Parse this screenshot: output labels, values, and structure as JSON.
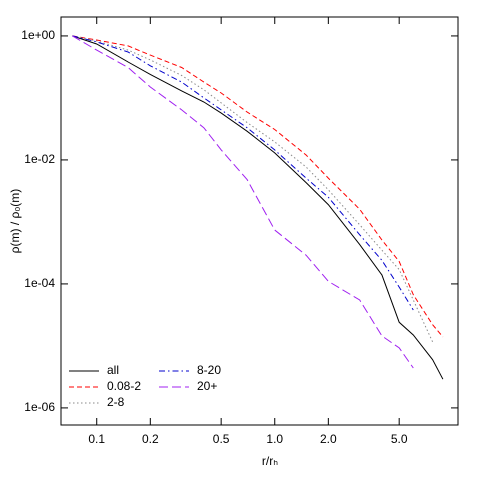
{
  "chart_data": {
    "type": "line",
    "xlabel": "r/rₕ",
    "ylabel": "ρ(m) / ρ₀(m)",
    "xlog": true,
    "ylog": true,
    "x": [
      0.073,
      0.1,
      0.15,
      0.2,
      0.3,
      0.4,
      0.5,
      0.7,
      1.0,
      1.5,
      2.0,
      3.0,
      4.0,
      5.0,
      6.0,
      7.7,
      8.8
    ],
    "series": [
      {
        "name": "all",
        "color": "#000000",
        "dash": "solid",
        "values": [
          1,
          0.74,
          0.38,
          0.24,
          0.13,
          0.086,
          0.057,
          0.029,
          0.013,
          0.0043,
          0.0019,
          0.00043,
          0.00014,
          2.4e-05,
          1.5e-05,
          6e-06,
          2.9e-06
        ]
      },
      {
        "name": "0.08-2",
        "color": "#ff0000",
        "dash": "dashed",
        "values": [
          1,
          0.86,
          0.69,
          0.49,
          0.31,
          0.18,
          0.12,
          0.059,
          0.031,
          0.012,
          0.0051,
          0.0016,
          0.00051,
          0.00023,
          6.7e-05,
          2.2e-05,
          1.4e-05
        ]
      },
      {
        "name": "2-8",
        "color": "#888888",
        "dash": "dotted",
        "values": [
          1,
          0.83,
          0.59,
          0.41,
          0.23,
          0.135,
          0.083,
          0.04,
          0.0195,
          0.0077,
          0.0033,
          0.0009,
          0.00035,
          0.00017,
          5.5e-05,
          1.16e-05,
          null
        ]
      },
      {
        "name": "8-20",
        "color": "#0000cc",
        "dash": "dashdot",
        "values": [
          1,
          0.8,
          0.55,
          0.33,
          0.18,
          0.1,
          0.064,
          0.033,
          0.0145,
          0.0051,
          0.0025,
          0.00062,
          0.00024,
          8.9e-05,
          3.8e-05,
          null,
          null
        ]
      },
      {
        "name": "20+",
        "color": "#a020f0",
        "dash": "longdash",
        "values": [
          1,
          0.59,
          0.31,
          0.15,
          0.064,
          0.033,
          0.0145,
          0.0048,
          0.00074,
          0.00029,
          0.00011,
          5.5e-05,
          1.45e-05,
          9.3e-06,
          4.4e-06,
          null,
          null
        ]
      }
    ],
    "xlim": [
      0.063,
      10.7
    ],
    "ylim": [
      5.3e-07,
      2.02
    ],
    "xticks": [
      0.1,
      0.2,
      0.5,
      {
        "value": 1,
        "label": "1.0"
      },
      {
        "value": 2,
        "label": "2.0"
      },
      {
        "value": 5,
        "label": "5.0"
      }
    ],
    "yticks": [
      {
        "value": 1e-06,
        "label": "1e-06"
      },
      {
        "value": 0.0001,
        "label": "1e-04"
      },
      {
        "value": 0.01,
        "label": "1e-02"
      },
      {
        "value": 1,
        "label": "1e+00"
      }
    ],
    "legend": "lower-left"
  }
}
